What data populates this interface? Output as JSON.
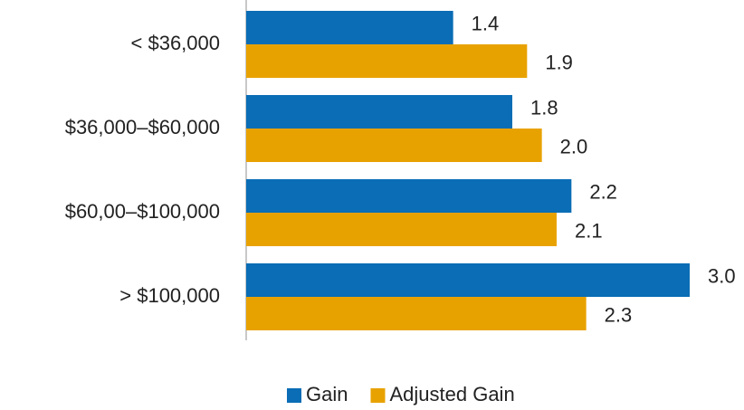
{
  "chart_data": {
    "type": "hbar",
    "categories": [
      "< $36,000",
      "$36,000–$60,000",
      "$60,00–$100,000",
      "> $100,000"
    ],
    "series": [
      {
        "name": "Gain",
        "color": "#0a6db5",
        "values": [
          1.4,
          1.8,
          2.2,
          3.0
        ],
        "value_labels": [
          "1.4",
          "1.8",
          "2.2",
          "3.0"
        ]
      },
      {
        "name": "Adjusted Gain",
        "color": "#e8a200",
        "values": [
          1.9,
          2.0,
          2.1,
          2.3
        ],
        "value_labels": [
          "1.9",
          "2.0",
          "2.1",
          "2.3"
        ]
      }
    ],
    "xlim": [
      0,
      3
    ],
    "legend": "bottom"
  }
}
